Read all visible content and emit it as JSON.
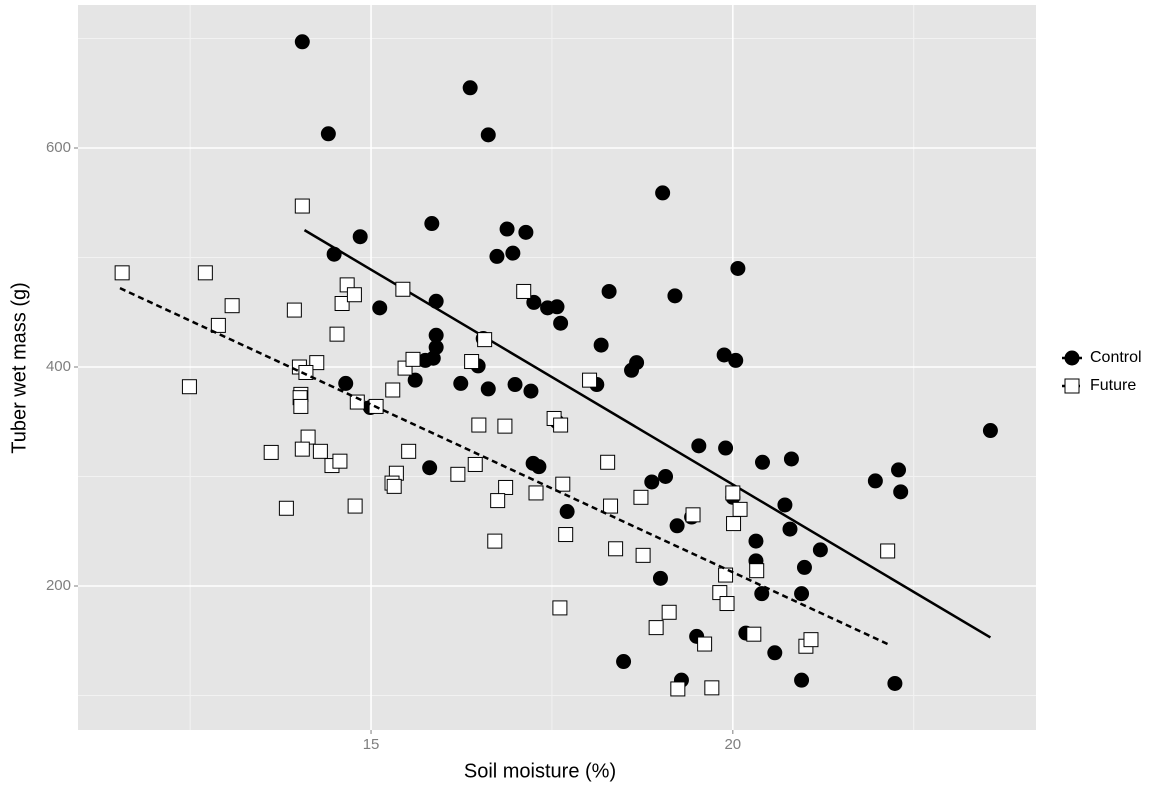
{
  "chart_data": {
    "type": "scatter",
    "x_label": "Soil moisture (%)",
    "y_label": "Tuber wet mass (g)",
    "xlim": [
      10.95,
      24.19
    ],
    "ylim": [
      68.5,
      730.6
    ],
    "xticks": [
      15,
      20
    ],
    "yticks": [
      200,
      400,
      600
    ],
    "x_minor_grid": [
      12.5,
      17.5,
      22.5
    ],
    "y_minor_grid": [
      100,
      300,
      500,
      700
    ],
    "grid": true,
    "legend_position": "right",
    "series": [
      {
        "name": "Control",
        "marker": "circle",
        "color": "#000000",
        "fill": "#000000",
        "line_style": "solid",
        "x": [
          14.05,
          16.37,
          14.41,
          16.62,
          19.03,
          15.84,
          16.88,
          17.14,
          14.85,
          14.49,
          16.74,
          16.96,
          20.07,
          19.2,
          18.29,
          15.9,
          17.25,
          17.44,
          17.57,
          17.62,
          15.12,
          15.9,
          15.9,
          16.55,
          15.86,
          15.75,
          18.18,
          18.67,
          18.6,
          15.61,
          14.65,
          16.24,
          16.62,
          16.99,
          17.21,
          16.48,
          18.12,
          19.88,
          20.04,
          14.99,
          17.57,
          19.53,
          19.9,
          17.24,
          17.32,
          15.81,
          18.88,
          19.07,
          20.41,
          20.81,
          21.97,
          22.29,
          22.32,
          20.72,
          20.79,
          19.43,
          19.23,
          20.0,
          20.32,
          20.32,
          20.4,
          21.21,
          20.99,
          20.18,
          20.58,
          20.95,
          22.24,
          20.95,
          19.0,
          19.5,
          19.29,
          18.49,
          23.56,
          17.71
        ],
        "y": [
          697,
          655,
          613,
          612,
          559,
          531,
          526,
          523,
          519,
          503,
          501,
          504,
          490,
          465,
          469,
          460,
          459,
          454,
          455,
          440,
          454,
          429,
          418,
          426,
          408,
          406,
          420,
          404,
          397,
          388,
          385,
          385,
          380,
          384,
          378,
          401,
          384,
          411,
          406,
          363,
          350,
          328,
          326,
          312,
          309,
          308,
          295,
          300,
          313,
          316,
          296,
          306,
          286,
          274,
          252,
          263,
          255,
          281,
          241,
          223,
          193,
          233,
          217,
          157,
          139,
          114,
          111,
          193,
          207,
          154,
          114,
          131,
          342,
          268
        ],
        "fit": {
          "x": [
            14.08,
            23.56
          ],
          "y": [
            525,
            153
          ]
        }
      },
      {
        "name": "Future",
        "marker": "square",
        "color": "#000000",
        "fill": "#ffffff",
        "line_style": "dashed",
        "x": [
          11.56,
          12.71,
          14.05,
          13.08,
          12.89,
          13.94,
          14.67,
          14.6,
          14.53,
          14.77,
          15.44,
          14.01,
          14.25,
          14.1,
          14.03,
          14.02,
          14.03,
          14.13,
          14.05,
          14.3,
          13.62,
          13.83,
          12.49,
          14.46,
          14.57,
          14.78,
          14.81,
          15.07,
          15.3,
          15.47,
          15.58,
          16.39,
          16.57,
          17.11,
          15.35,
          15.29,
          15.32,
          15.52,
          16.2,
          16.44,
          16.49,
          16.85,
          16.86,
          16.75,
          16.71,
          17.28,
          17.53,
          17.62,
          17.65,
          17.69,
          17.61,
          18.02,
          18.27,
          18.31,
          18.38,
          18.76,
          18.73,
          18.94,
          19.12,
          19.45,
          19.61,
          19.24,
          19.71,
          19.82,
          19.9,
          19.92,
          20.0,
          20.01,
          20.1,
          20.33,
          20.29,
          21.01,
          21.08,
          22.14
        ],
        "y": [
          486,
          486,
          547,
          456,
          438,
          452,
          475,
          458,
          430,
          466,
          471,
          400,
          404,
          395,
          375,
          372,
          364,
          336,
          325,
          323,
          322,
          271,
          382,
          310,
          314,
          273,
          368,
          364,
          379,
          399,
          407,
          405,
          425,
          469,
          303,
          294,
          291,
          323,
          302,
          311,
          347,
          346,
          290,
          278,
          241,
          285,
          353,
          347,
          293,
          247,
          180,
          388,
          313,
          273,
          234,
          228,
          281,
          162,
          176,
          265,
          147,
          106,
          107,
          194,
          210,
          184,
          285,
          257,
          270,
          214,
          156,
          145,
          151,
          232
        ],
        "fit": {
          "x": [
            11.53,
            22.14
          ],
          "y": [
            472,
            147
          ]
        }
      }
    ]
  }
}
